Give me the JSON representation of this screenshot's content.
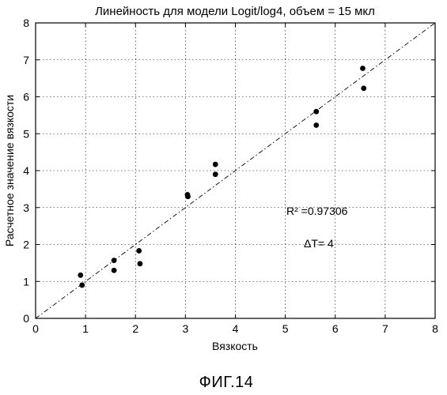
{
  "chart_data": {
    "type": "scatter",
    "title": "Линейность для модели Logit/log4, объем = 15 мкл",
    "xlabel": "Вязкость",
    "ylabel": "Расчетное значение вязкости",
    "xlim": [
      0,
      8
    ],
    "ylim": [
      0,
      8
    ],
    "x_ticks": [
      "0",
      "1",
      "2",
      "3",
      "4",
      "5",
      "6",
      "7",
      "8"
    ],
    "y_ticks": [
      "0",
      "1",
      "2",
      "3",
      "4",
      "5",
      "6",
      "7",
      "8"
    ],
    "grid": true,
    "points": [
      {
        "x": 0.9,
        "y": 1.17
      },
      {
        "x": 0.93,
        "y": 0.9
      },
      {
        "x": 1.57,
        "y": 1.57
      },
      {
        "x": 1.57,
        "y": 1.3
      },
      {
        "x": 2.07,
        "y": 1.83
      },
      {
        "x": 2.09,
        "y": 1.48
      },
      {
        "x": 3.04,
        "y": 3.35
      },
      {
        "x": 3.05,
        "y": 3.3
      },
      {
        "x": 3.6,
        "y": 4.17
      },
      {
        "x": 3.6,
        "y": 3.9
      },
      {
        "x": 5.62,
        "y": 5.6
      },
      {
        "x": 5.62,
        "y": 5.23
      },
      {
        "x": 6.55,
        "y": 6.77
      },
      {
        "x": 6.57,
        "y": 6.23
      }
    ],
    "fit_line": {
      "from": [
        0,
        0
      ],
      "to": [
        8,
        8
      ],
      "style": "dash-dot"
    },
    "annotations": {
      "r2": "R² =0.97306",
      "delta_t": "ΔT= 4"
    }
  },
  "figure_caption": "ФИГ.14"
}
